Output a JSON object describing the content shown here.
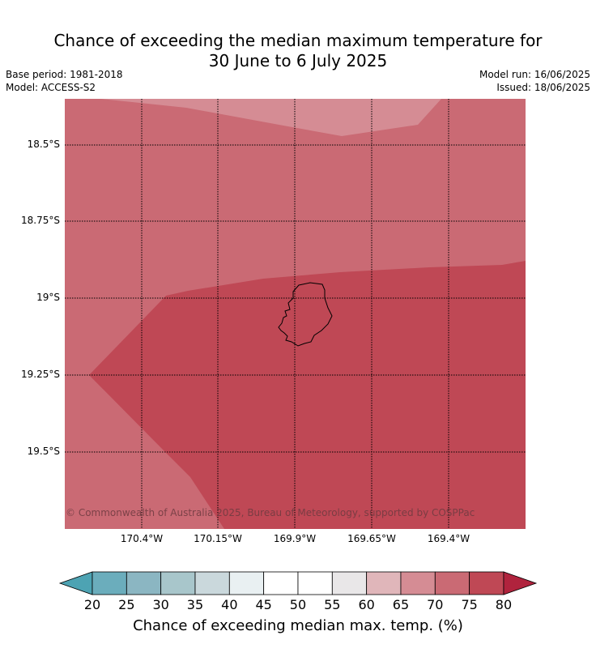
{
  "title_line1": "Chance of exceeding the median maximum temperature for",
  "title_line2": "30 June to 6 July 2025",
  "meta": {
    "base_period": "Base period: 1981-2018",
    "model": "Model: ACCESS-S2",
    "model_run": "Model run: 16/06/2025",
    "issued": "Issued: 18/06/2025"
  },
  "map": {
    "copyright": "© Commonwealth of Australia 2025, Bureau of Meteorology, supported by COSPPac",
    "lat_labels": [
      "18.5°S",
      "18.75°S",
      "19°S",
      "19.25°S",
      "19.5°S"
    ],
    "lon_labels": [
      "170.4°W",
      "170.15°W",
      "169.9°W",
      "169.65°W",
      "169.4°W"
    ],
    "regions": [
      {
        "name": "70-75%",
        "color": "#ca6a74"
      },
      {
        "name": "65-70%",
        "color": "#d58c94"
      },
      {
        "name": "75-80%",
        "color": "#bf4855"
      }
    ]
  },
  "colorbar": {
    "label": "Chance of exceeding median max. temp. (%)",
    "ticks": [
      "20",
      "25",
      "30",
      "35",
      "40",
      "45",
      "50",
      "55",
      "60",
      "65",
      "70",
      "75",
      "80"
    ],
    "colors": {
      "below": "#4da3b3",
      "bins": [
        "#6badbc",
        "#8bb6c2",
        "#a8c6cb",
        "#cad8dc",
        "#e9f0f2",
        "#ffffff",
        "#ffffff",
        "#e9e7e8",
        "#e0b6ba",
        "#d58c94",
        "#ca6a74",
        "#bf4855"
      ],
      "above": "#b0233d"
    }
  }
}
